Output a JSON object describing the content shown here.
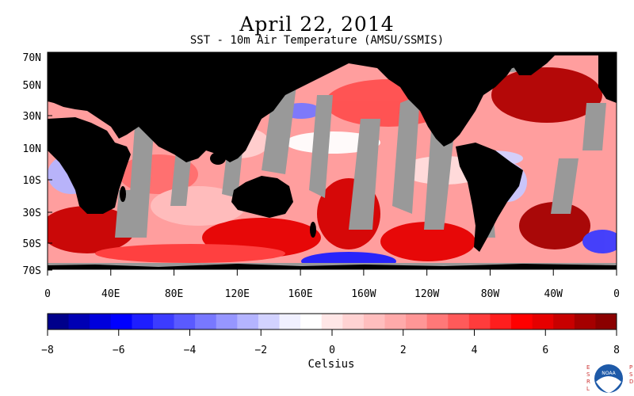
{
  "title": "April 22, 2014",
  "subtitle": "SST - 10m Air Temperature (AMSU/SSMIS)",
  "map": {
    "lat_labels": [
      "70N",
      "50N",
      "30N",
      "10N",
      "10S",
      "30S",
      "50S",
      "70S"
    ],
    "lon_labels": [
      "0",
      "40E",
      "80E",
      "120E",
      "160E",
      "160W",
      "120W",
      "80W",
      "40W",
      "0"
    ],
    "land_color": "#000000",
    "missing_data_color": "#999999"
  },
  "colorbar": {
    "ticks": [
      "−8",
      "−6",
      "−4",
      "−2",
      "0",
      "2",
      "4",
      "6",
      "8"
    ],
    "min": -8,
    "max": 8,
    "units": "Celsius",
    "colors": [
      "#00008b",
      "#0000b4",
      "#0000dc",
      "#0000ff",
      "#1e1eff",
      "#3c3cff",
      "#5a5aff",
      "#7878ff",
      "#9696ff",
      "#b4b4ff",
      "#d2d2ff",
      "#f0f0ff",
      "#ffffff",
      "#ffe6e6",
      "#ffd2d2",
      "#ffbebe",
      "#ffaaaa",
      "#ff9696",
      "#ff7878",
      "#ff5a5a",
      "#ff3c3c",
      "#ff1e1e",
      "#ff0000",
      "#e60000",
      "#c80000",
      "#a50000",
      "#8b0000"
    ]
  },
  "logo": {
    "left_text": "ESRL",
    "right_text": "PSD",
    "badge_text": "NOAA"
  }
}
